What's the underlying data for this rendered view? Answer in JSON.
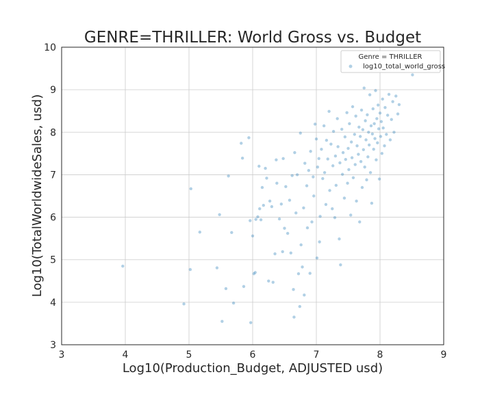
{
  "chart_data": {
    "type": "scatter",
    "title": "GENRE=THRILLER: World Gross vs. Budget",
    "xlabel": "Log10(Production_Budget, ADJUSTED usd)",
    "ylabel": "Log10(TotalWorldwideSales, usd)",
    "xlim": [
      3,
      9
    ],
    "ylim": [
      3,
      10
    ],
    "xticks": [
      "3",
      "4",
      "5",
      "6",
      "7",
      "8",
      "9"
    ],
    "yticks": [
      "3",
      "4",
      "5",
      "6",
      "7",
      "8",
      "9",
      "10"
    ],
    "grid": true,
    "legend": {
      "title": "Genre = THRILLER",
      "placement": "top-right"
    },
    "series": [
      {
        "name": "log10_total_world_gross",
        "color": "#1f77b4",
        "points": [
          [
            3.96,
            4.85
          ],
          [
            4.92,
            3.96
          ],
          [
            5.02,
            4.77
          ],
          [
            5.03,
            6.67
          ],
          [
            5.17,
            5.65
          ],
          [
            5.44,
            4.81
          ],
          [
            5.48,
            6.06
          ],
          [
            5.52,
            3.55
          ],
          [
            5.58,
            4.32
          ],
          [
            5.62,
            6.97
          ],
          [
            5.67,
            5.64
          ],
          [
            5.7,
            3.98
          ],
          [
            5.82,
            7.74
          ],
          [
            5.84,
            7.39
          ],
          [
            5.86,
            4.37
          ],
          [
            5.94,
            7.87
          ],
          [
            5.96,
            5.92
          ],
          [
            5.97,
            3.52
          ],
          [
            6.0,
            5.56
          ],
          [
            6.02,
            4.67
          ],
          [
            6.04,
            4.7
          ],
          [
            6.05,
            5.95
          ],
          [
            6.08,
            6.01
          ],
          [
            6.1,
            7.2
          ],
          [
            6.11,
            6.2
          ],
          [
            6.13,
            5.94
          ],
          [
            6.15,
            6.7
          ],
          [
            6.17,
            6.28
          ],
          [
            6.2,
            7.15
          ],
          [
            6.22,
            6.92
          ],
          [
            6.25,
            4.5
          ],
          [
            6.27,
            6.38
          ],
          [
            6.3,
            6.25
          ],
          [
            6.32,
            4.47
          ],
          [
            6.35,
            5.14
          ],
          [
            6.37,
            7.35
          ],
          [
            6.38,
            6.8
          ],
          [
            6.42,
            5.96
          ],
          [
            6.45,
            6.31
          ],
          [
            6.47,
            5.19
          ],
          [
            6.48,
            7.38
          ],
          [
            6.5,
            5.74
          ],
          [
            6.52,
            6.72
          ],
          [
            6.55,
            5.62
          ],
          [
            6.58,
            6.4
          ],
          [
            6.6,
            5.16
          ],
          [
            6.62,
            6.98
          ],
          [
            6.64,
            4.3
          ],
          [
            6.65,
            3.65
          ],
          [
            6.66,
            7.52
          ],
          [
            6.68,
            6.1
          ],
          [
            6.7,
            7.0
          ],
          [
            6.72,
            4.67
          ],
          [
            6.74,
            3.9
          ],
          [
            6.75,
            7.98
          ],
          [
            6.76,
            5.35
          ],
          [
            6.78,
            4.83
          ],
          [
            6.8,
            6.22
          ],
          [
            6.81,
            4.17
          ],
          [
            6.82,
            7.27
          ],
          [
            6.85,
            6.74
          ],
          [
            6.86,
            5.75
          ],
          [
            6.88,
            7.1
          ],
          [
            6.9,
            4.68
          ],
          [
            6.91,
            7.55
          ],
          [
            6.93,
            5.89
          ],
          [
            6.95,
            6.95
          ],
          [
            6.96,
            6.5
          ],
          [
            6.98,
            8.19
          ],
          [
            7.0,
            7.84
          ],
          [
            7.01,
            5.04
          ],
          [
            7.02,
            7.18
          ],
          [
            7.04,
            7.38
          ],
          [
            7.05,
            5.42
          ],
          [
            7.06,
            6.02
          ],
          [
            7.08,
            7.6
          ],
          [
            7.1,
            6.91
          ],
          [
            7.12,
            8.15
          ],
          [
            7.13,
            7.05
          ],
          [
            7.15,
            6.3
          ],
          [
            7.16,
            7.81
          ],
          [
            7.18,
            7.37
          ],
          [
            7.2,
            8.49
          ],
          [
            7.21,
            6.63
          ],
          [
            7.23,
            7.72
          ],
          [
            7.25,
            6.2
          ],
          [
            7.26,
            7.21
          ],
          [
            7.27,
            8.02
          ],
          [
            7.29,
            5.99
          ],
          [
            7.3,
            7.44
          ],
          [
            7.31,
            6.75
          ],
          [
            7.33,
            8.32
          ],
          [
            7.34,
            7.66
          ],
          [
            7.36,
            5.49
          ],
          [
            7.37,
            7.28
          ],
          [
            7.38,
            4.88
          ],
          [
            7.4,
            8.07
          ],
          [
            7.41,
            7.01
          ],
          [
            7.42,
            7.52
          ],
          [
            7.44,
            6.45
          ],
          [
            7.45,
            7.89
          ],
          [
            7.46,
            7.36
          ],
          [
            7.48,
            8.46
          ],
          [
            7.49,
            6.8
          ],
          [
            7.5,
            7.62
          ],
          [
            7.51,
            7.12
          ],
          [
            7.52,
            8.2
          ],
          [
            7.54,
            6.05
          ],
          [
            7.55,
            7.77
          ],
          [
            7.56,
            7.4
          ],
          [
            7.57,
            8.6
          ],
          [
            7.58,
            6.93
          ],
          [
            7.6,
            7.95
          ],
          [
            7.61,
            7.24
          ],
          [
            7.62,
            8.38
          ],
          [
            7.63,
            6.38
          ],
          [
            7.64,
            7.68
          ],
          [
            7.66,
            7.48
          ],
          [
            7.67,
            8.12
          ],
          [
            7.68,
            5.89
          ],
          [
            7.69,
            7.9
          ],
          [
            7.7,
            7.31
          ],
          [
            7.71,
            8.52
          ],
          [
            7.72,
            6.7
          ],
          [
            7.73,
            8.06
          ],
          [
            7.74,
            7.59
          ],
          [
            7.75,
            9.04
          ],
          [
            7.76,
            7.18
          ],
          [
            7.77,
            8.27
          ],
          [
            7.78,
            7.82
          ],
          [
            7.79,
            6.88
          ],
          [
            7.8,
            8.41
          ],
          [
            7.81,
            7.42
          ],
          [
            7.82,
            8.0
          ],
          [
            7.83,
            7.7
          ],
          [
            7.84,
            8.88
          ],
          [
            7.85,
            7.05
          ],
          [
            7.86,
            8.15
          ],
          [
            7.87,
            6.33
          ],
          [
            7.88,
            7.96
          ],
          [
            7.89,
            8.55
          ],
          [
            7.9,
            7.6
          ],
          [
            7.91,
            8.2
          ],
          [
            7.92,
            7.85
          ],
          [
            7.93,
            8.98
          ],
          [
            7.94,
            7.35
          ],
          [
            7.95,
            8.32
          ],
          [
            7.96,
            7.75
          ],
          [
            7.97,
            8.64
          ],
          [
            7.98,
            8.08
          ],
          [
            7.99,
            6.9
          ],
          [
            8.0,
            8.45
          ],
          [
            8.01,
            7.9
          ],
          [
            8.02,
            8.25
          ],
          [
            8.03,
            7.5
          ],
          [
            8.04,
            8.78
          ],
          [
            8.05,
            8.1
          ],
          [
            8.07,
            7.68
          ],
          [
            8.08,
            8.58
          ],
          [
            8.1,
            7.95
          ],
          [
            8.12,
            8.4
          ],
          [
            8.14,
            8.89
          ],
          [
            8.16,
            7.82
          ],
          [
            8.18,
            8.3
          ],
          [
            8.2,
            8.72
          ],
          [
            8.22,
            8.0
          ],
          [
            8.25,
            8.85
          ],
          [
            8.28,
            8.43
          ],
          [
            8.3,
            8.65
          ],
          [
            8.51,
            9.35
          ]
        ]
      }
    ]
  }
}
